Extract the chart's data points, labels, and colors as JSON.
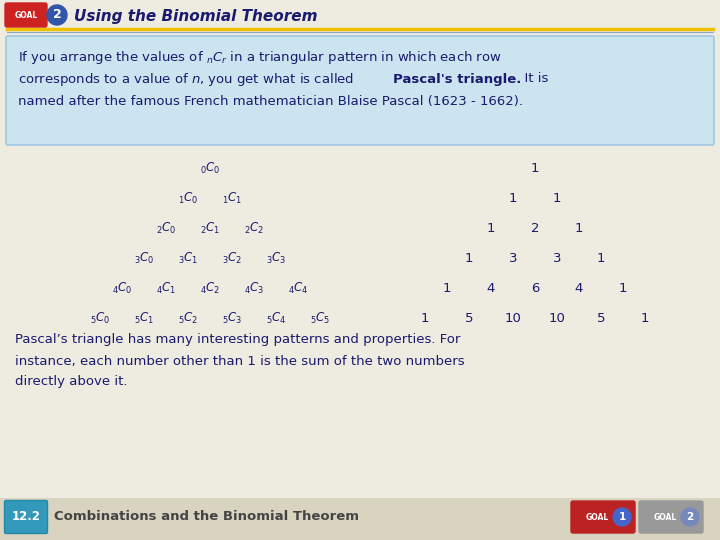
{
  "title": "Using the Binomial Theorem",
  "bg_color": "#eeebe0",
  "box_bg": "#cce4f0",
  "box_border": "#a0c8de",
  "bottom_bar_bg": "#d8d4c0",
  "gold_line": "#f0c000",
  "blue_line": "#88aacc",
  "text_color": "#1a1a6e",
  "goal_red": "#cc2222",
  "goal_blue": "#3355aa",
  "teal_badge": "#3399bb",
  "goal1_red": "#bb2222",
  "goal2_gray": "#999999",
  "goal_circle1": "#4466cc",
  "goal_circle2": "#7788bb",
  "pascal_left": [
    [
      "$_0C_0$"
    ],
    [
      "$_1C_0$",
      "$_1C_1$"
    ],
    [
      "$_2C_0$",
      "$_2C_1$",
      "$_2C_2$"
    ],
    [
      "$_3C_0$",
      "$_3C_1$",
      "$_3C_2$",
      "$_3C_3$"
    ],
    [
      "$_4C_0$",
      "$_4C_1$",
      "$_4C_2$",
      "$_4C_3$",
      "$_4C_4$"
    ],
    [
      "$_5C_0$",
      "$_5C_1$",
      "$_5C_2$",
      "$_5C_3$",
      "$_5C_4$",
      "$_5C_5$"
    ]
  ],
  "pascal_right": [
    [
      "1"
    ],
    [
      "1",
      "1"
    ],
    [
      "1",
      "2",
      "1"
    ],
    [
      "1",
      "3",
      "3",
      "1"
    ],
    [
      "1",
      "4",
      "6",
      "4",
      "1"
    ],
    [
      "1",
      "5",
      "10",
      "10",
      "5",
      "1"
    ]
  ],
  "bottom_lines": [
    "Pascal’s triangle has many interesting patterns and properties. For",
    "instance, each number other than 1 is the sum of the two numbers",
    "directly above it."
  ],
  "section_label": "12.2",
  "section_title": "Combinations and the Binomial Theorem"
}
